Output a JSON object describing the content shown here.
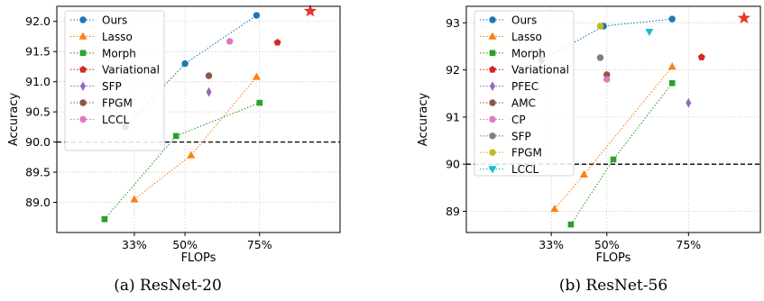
{
  "chart_data": [
    {
      "type": "scatter",
      "caption": "(a) ResNet-20",
      "xlabel": "FLOPs",
      "ylabel": "Accuracy",
      "xlim": [
        0.07,
        1.02
      ],
      "ylim": [
        88.5,
        92.25
      ],
      "xticks": [
        {
          "value": 0.33,
          "label": "33%"
        },
        {
          "value": 0.5,
          "label": "50%"
        },
        {
          "value": 0.75,
          "label": "75%"
        }
      ],
      "yticks": [
        89.0,
        89.5,
        90.0,
        90.5,
        91.0,
        91.5,
        92.0
      ],
      "ytick_labels": [
        "89.0",
        "89.5",
        "90.0",
        "90.5",
        "91.0",
        "91.5",
        "92.0"
      ],
      "grid": true,
      "legend_position": "top-left",
      "reference_line": {
        "y": 90.0,
        "style": "dashed",
        "color": "#000000"
      },
      "series": [
        {
          "name": "Ours",
          "marker": "circle",
          "color": "#1f77b4",
          "connected": true,
          "points": [
            [
              0.3,
              90.25
            ],
            [
              0.5,
              91.3
            ],
            [
              0.74,
              92.1
            ]
          ]
        },
        {
          "name": "Lasso",
          "marker": "triangle",
          "color": "#ff7f0e",
          "connected": true,
          "points": [
            [
              0.33,
              89.05
            ],
            [
              0.52,
              89.78
            ],
            [
              0.74,
              91.08
            ]
          ]
        },
        {
          "name": "Morph",
          "marker": "square",
          "color": "#2ca02c",
          "connected": true,
          "points": [
            [
              0.23,
              88.72
            ],
            [
              0.47,
              90.1
            ],
            [
              0.75,
              90.65
            ]
          ]
        },
        {
          "name": "Variational",
          "marker": "pentagon",
          "color": "#d62728",
          "connected": false,
          "points": [
            [
              0.81,
              91.65
            ]
          ]
        },
        {
          "name": "SFP",
          "marker": "diamond",
          "color": "#9467bd",
          "connected": false,
          "points": [
            [
              0.58,
              90.83
            ]
          ]
        },
        {
          "name": "FPGM",
          "marker": "circle",
          "color": "#8c564b",
          "connected": false,
          "points": [
            [
              0.58,
              91.1
            ]
          ]
        },
        {
          "name": "LCCL",
          "marker": "circle",
          "color": "#e377c2",
          "connected": false,
          "points": [
            [
              0.65,
              91.67
            ]
          ]
        }
      ],
      "star": {
        "x": 0.92,
        "y": 92.17,
        "color": "#e8352a"
      }
    },
    {
      "type": "scatter",
      "caption": "(b) ResNet-56",
      "xlabel": "FLOPs",
      "ylabel": "Accuracy",
      "xlim": [
        0.07,
        0.97
      ],
      "ylim": [
        88.55,
        93.35
      ],
      "xticks": [
        {
          "value": 0.33,
          "label": "33%"
        },
        {
          "value": 0.5,
          "label": "50%"
        },
        {
          "value": 0.75,
          "label": "75%"
        }
      ],
      "yticks": [
        89,
        90,
        91,
        92,
        93
      ],
      "ytick_labels": [
        "89",
        "90",
        "91",
        "92",
        "93"
      ],
      "grid": true,
      "legend_position": "top-left",
      "reference_line": {
        "y": 90.0,
        "style": "dashed",
        "color": "#000000"
      },
      "series": [
        {
          "name": "Ours",
          "marker": "circle",
          "color": "#1f77b4",
          "connected": true,
          "points": [
            [
              0.3,
              92.2
            ],
            [
              0.49,
              92.93
            ],
            [
              0.7,
              93.08
            ]
          ]
        },
        {
          "name": "Lasso",
          "marker": "triangle",
          "color": "#ff7f0e",
          "connected": true,
          "points": [
            [
              0.34,
              89.05
            ],
            [
              0.43,
              89.78
            ],
            [
              0.7,
              92.07
            ]
          ]
        },
        {
          "name": "Morph",
          "marker": "square",
          "color": "#2ca02c",
          "connected": true,
          "points": [
            [
              0.39,
              88.72
            ],
            [
              0.52,
              90.1
            ],
            [
              0.7,
              91.72
            ]
          ]
        },
        {
          "name": "Variational",
          "marker": "pentagon",
          "color": "#d62728",
          "connected": false,
          "points": [
            [
              0.79,
              92.27
            ]
          ]
        },
        {
          "name": "PFEC",
          "marker": "diamond",
          "color": "#9467bd",
          "connected": false,
          "points": [
            [
              0.75,
              91.3
            ]
          ]
        },
        {
          "name": "AMC",
          "marker": "circle",
          "color": "#8c564b",
          "connected": false,
          "points": [
            [
              0.5,
              91.9
            ]
          ]
        },
        {
          "name": "CP",
          "marker": "circle",
          "color": "#e377c2",
          "connected": false,
          "points": [
            [
              0.5,
              91.8
            ]
          ]
        },
        {
          "name": "SFP",
          "marker": "circle",
          "color": "#7f7f7f",
          "connected": false,
          "points": [
            [
              0.48,
              92.26
            ]
          ]
        },
        {
          "name": "FPGM",
          "marker": "circle",
          "color": "#bcbd22",
          "connected": false,
          "points": [
            [
              0.48,
              92.93
            ]
          ]
        },
        {
          "name": "LCCL",
          "marker": "triangle-down",
          "color": "#17becf",
          "connected": false,
          "points": [
            [
              0.63,
              92.81
            ]
          ]
        }
      ],
      "star": {
        "x": 0.92,
        "y": 93.1,
        "color": "#e8352a"
      }
    }
  ]
}
